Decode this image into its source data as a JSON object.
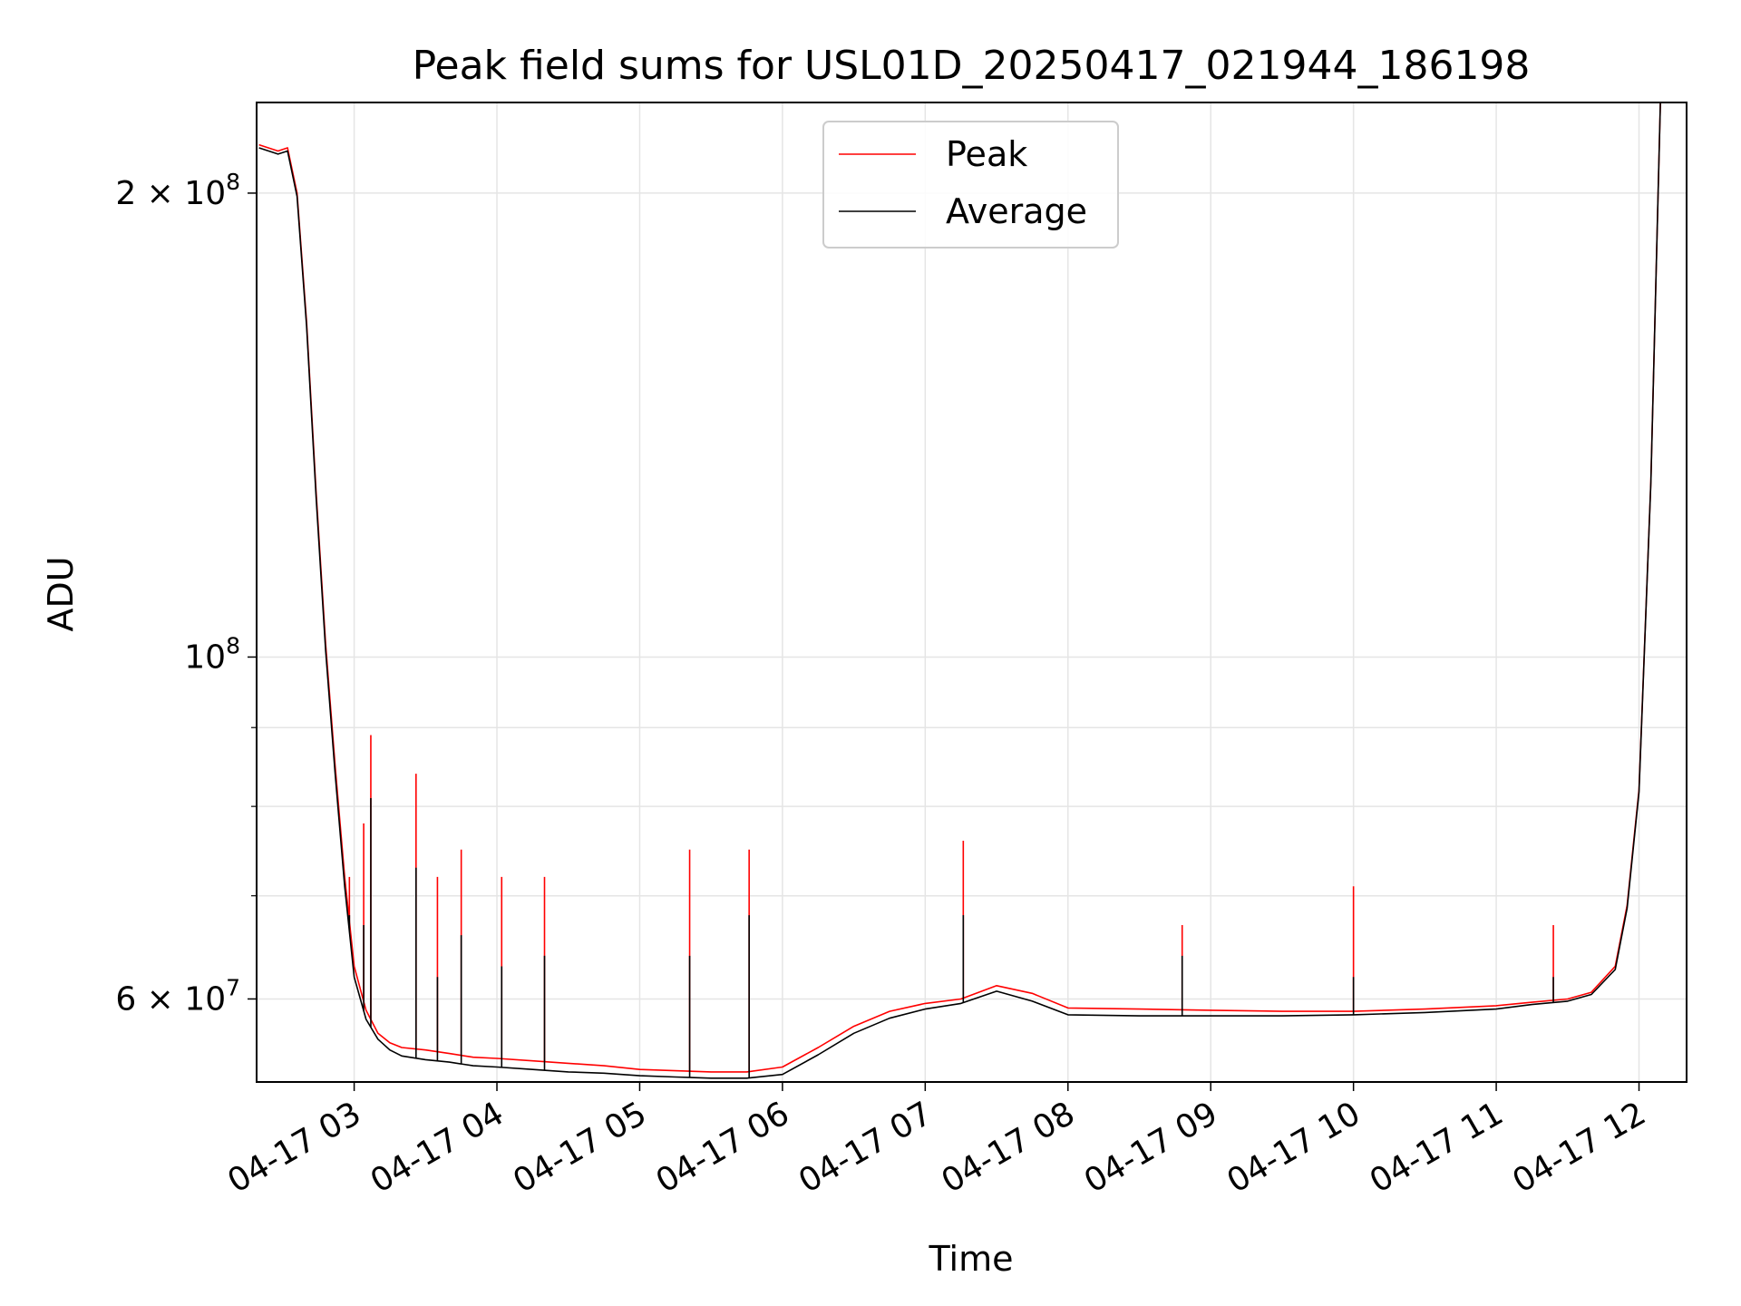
{
  "chart_data": {
    "type": "line",
    "title": "Peak field sums for USL01D_20250417_021944_186198",
    "xlabel": "Time",
    "ylabel": "ADU",
    "yscale": "log",
    "xlim": [
      "04-17 02:19",
      "04-17 12:20"
    ],
    "ylim": [
      53000000,
      229000000
    ],
    "xticks": [
      "04-17 03",
      "04-17 04",
      "04-17 05",
      "04-17 06",
      "04-17 07",
      "04-17 08",
      "04-17 09",
      "04-17 10",
      "04-17 11",
      "04-17 12"
    ],
    "yticks_major": [
      {
        "value": 60000000,
        "base": "6 × 10",
        "exp": "7"
      },
      {
        "value": 100000000,
        "base": "10",
        "exp": "8"
      },
      {
        "value": 200000000,
        "base": "2 × 10",
        "exp": "8"
      }
    ],
    "yticks_minor": [
      70000000,
      80000000,
      90000000
    ],
    "grid": true,
    "legend_position": "top-center",
    "colors": {
      "peak": "#ff0000",
      "average": "#000000",
      "grid": "#e5e5e5"
    },
    "series": [
      {
        "name": "Peak",
        "color": "#ff0000",
        "x": [
          "04-17 02:20",
          "04-17 02:28",
          "04-17 02:32",
          "04-17 02:36",
          "04-17 02:40",
          "04-17 02:44",
          "04-17 02:48",
          "04-17 02:52",
          "04-17 02:56",
          "04-17 03:00",
          "04-17 03:05",
          "04-17 03:10",
          "04-17 03:15",
          "04-17 03:20",
          "04-17 03:30",
          "04-17 03:40",
          "04-17 03:50",
          "04-17 04:00",
          "04-17 04:15",
          "04-17 04:30",
          "04-17 04:45",
          "04-17 05:00",
          "04-17 05:15",
          "04-17 05:30",
          "04-17 05:45",
          "04-17 06:00",
          "04-17 06:15",
          "04-17 06:30",
          "04-17 06:45",
          "04-17 07:00",
          "04-17 07:15",
          "04-17 07:30",
          "04-17 07:45",
          "04-17 08:00",
          "04-17 08:30",
          "04-17 09:00",
          "04-17 09:30",
          "04-17 10:00",
          "04-17 10:30",
          "04-17 11:00",
          "04-17 11:15",
          "04-17 11:30",
          "04-17 11:40",
          "04-17 11:50",
          "04-17 11:55",
          "04-17 12:00",
          "04-17 12:05",
          "04-17 12:09"
        ],
        "y": [
          215000000,
          213000000,
          214000000,
          200000000,
          165000000,
          128000000,
          102000000,
          85000000,
          72000000,
          63000000,
          59000000,
          57000000,
          56200000,
          55800000,
          55600000,
          55300000,
          55000000,
          54900000,
          54700000,
          54500000,
          54300000,
          54000000,
          53900000,
          53800000,
          53800000,
          54200000,
          55800000,
          57600000,
          58900000,
          59600000,
          60000000,
          61200000,
          60500000,
          59200000,
          59100000,
          59000000,
          58900000,
          58900000,
          59100000,
          59400000,
          59700000,
          60000000,
          60600000,
          63000000,
          69000000,
          82000000,
          130000000,
          229000000
        ]
      },
      {
        "name": "Average",
        "color": "#000000",
        "x": [
          "04-17 02:20",
          "04-17 02:28",
          "04-17 02:32",
          "04-17 02:36",
          "04-17 02:40",
          "04-17 02:44",
          "04-17 02:48",
          "04-17 02:52",
          "04-17 02:56",
          "04-17 03:00",
          "04-17 03:05",
          "04-17 03:10",
          "04-17 03:15",
          "04-17 03:20",
          "04-17 03:30",
          "04-17 03:40",
          "04-17 03:50",
          "04-17 04:00",
          "04-17 04:15",
          "04-17 04:30",
          "04-17 04:45",
          "04-17 05:00",
          "04-17 05:15",
          "04-17 05:30",
          "04-17 05:45",
          "04-17 06:00",
          "04-17 06:15",
          "04-17 06:30",
          "04-17 06:45",
          "04-17 07:00",
          "04-17 07:15",
          "04-17 07:30",
          "04-17 07:45",
          "04-17 08:00",
          "04-17 08:30",
          "04-17 09:00",
          "04-17 09:30",
          "04-17 10:00",
          "04-17 10:30",
          "04-17 11:00",
          "04-17 11:15",
          "04-17 11:30",
          "04-17 11:40",
          "04-17 11:50",
          "04-17 11:55",
          "04-17 12:00",
          "04-17 12:05",
          "04-17 12:09"
        ],
        "y": [
          214000000,
          212000000,
          213000000,
          199000000,
          164000000,
          127000000,
          101000000,
          84000000,
          71000000,
          62000000,
          58200000,
          56500000,
          55600000,
          55100000,
          54800000,
          54600000,
          54300000,
          54200000,
          54000000,
          53800000,
          53700000,
          53500000,
          53400000,
          53300000,
          53300000,
          53600000,
          55200000,
          57000000,
          58300000,
          59100000,
          59600000,
          60700000,
          59800000,
          58600000,
          58500000,
          58500000,
          58500000,
          58600000,
          58800000,
          59100000,
          59500000,
          59800000,
          60400000,
          62700000,
          68700000,
          81700000,
          129800000,
          229000000
        ]
      }
    ],
    "spikes": [
      {
        "x": "04-17 02:58",
        "peak": 72000000,
        "average": 68000000
      },
      {
        "x": "04-17 03:04",
        "peak": 78000000,
        "average": 67000000
      },
      {
        "x": "04-17 03:07",
        "peak": 89000000,
        "average": 81000000
      },
      {
        "x": "04-17 03:26",
        "peak": 84000000,
        "average": 73000000
      },
      {
        "x": "04-17 03:35",
        "peak": 72000000,
        "average": 62000000
      },
      {
        "x": "04-17 03:45",
        "peak": 75000000,
        "average": 66000000
      },
      {
        "x": "04-17 04:02",
        "peak": 72000000,
        "average": 63000000
      },
      {
        "x": "04-17 04:20",
        "peak": 72000000,
        "average": 64000000
      },
      {
        "x": "04-17 05:21",
        "peak": 75000000,
        "average": 64000000
      },
      {
        "x": "04-17 05:46",
        "peak": 75000000,
        "average": 68000000
      },
      {
        "x": "04-17 07:16",
        "peak": 76000000,
        "average": 68000000
      },
      {
        "x": "04-17 08:48",
        "peak": 67000000,
        "average": 64000000
      },
      {
        "x": "04-17 10:00",
        "peak": 71000000,
        "average": 62000000
      },
      {
        "x": "04-17 11:24",
        "peak": 67000000,
        "average": 62000000
      }
    ]
  }
}
